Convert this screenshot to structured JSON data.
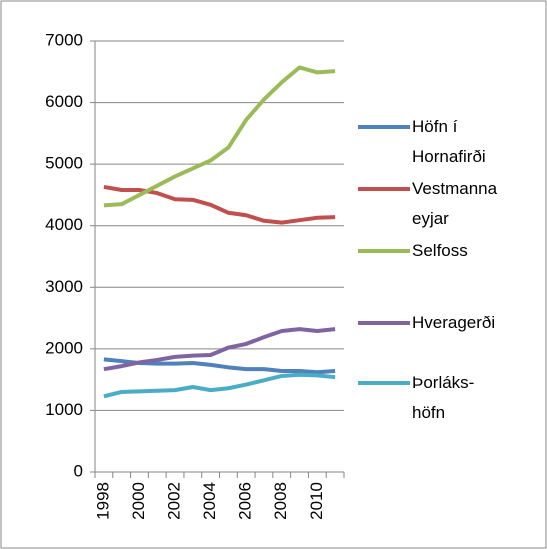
{
  "chart_data": {
    "type": "line",
    "categories": [
      "1998",
      null,
      "2000",
      null,
      "2002",
      null,
      "2004",
      null,
      "2006",
      null,
      "2008",
      null,
      "2010",
      null
    ],
    "series": [
      {
        "name": "Höfn í Hornafirði",
        "color": "#4f81bd",
        "values": [
          1830,
          1800,
          1770,
          1760,
          1760,
          1770,
          1740,
          1700,
          1670,
          1670,
          1640,
          1640,
          1620,
          1640
        ]
      },
      {
        "name": "Vestmannaeyjar",
        "color": "#c0504d",
        "values": [
          4630,
          4580,
          4580,
          4530,
          4430,
          4420,
          4340,
          4210,
          4170,
          4080,
          4050,
          4090,
          4130,
          4140
        ]
      },
      {
        "name": "Selfoss",
        "color": "#9bbb59",
        "values": [
          4330,
          4350,
          4500,
          4650,
          4800,
          4930,
          5060,
          5270,
          5720,
          6050,
          6330,
          6570,
          6490,
          6510
        ]
      },
      {
        "name": "Hveragerði",
        "color": "#8064a2",
        "values": [
          1670,
          1720,
          1780,
          1820,
          1870,
          1890,
          1900,
          2020,
          2080,
          2190,
          2290,
          2320,
          2290,
          2320
        ]
      },
      {
        "name": "Þorláks-höfn",
        "color": "#4bacc6",
        "values": [
          1230,
          1300,
          1310,
          1320,
          1330,
          1380,
          1330,
          1360,
          1420,
          1490,
          1560,
          1580,
          1570,
          1540
        ]
      }
    ],
    "ylim": [
      0,
      7000
    ],
    "yticks": [
      0,
      1000,
      2000,
      3000,
      4000,
      5000,
      6000,
      7000
    ],
    "grid": true
  }
}
